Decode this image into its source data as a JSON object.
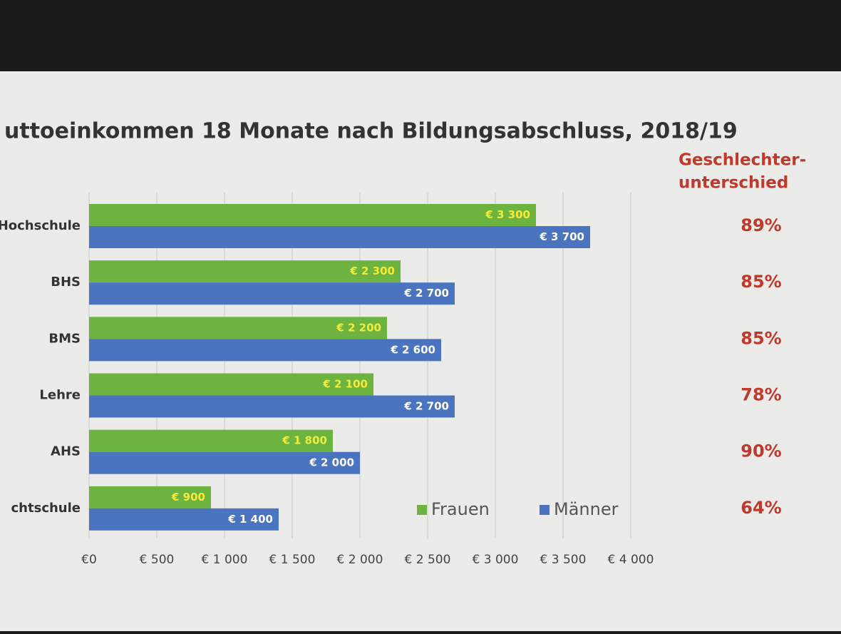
{
  "chart_data": {
    "type": "hbar",
    "title": "uttoeinkommen 18 Monate nach Bildungsabschluss, 2018/19",
    "categories": [
      "Hochschule",
      "BHS",
      "BMS",
      "Lehre",
      "AHS",
      "chtschule"
    ],
    "series": [
      {
        "name": "Frauen",
        "color": "#6db33f",
        "values": [
          3300,
          2300,
          2200,
          2100,
          1800,
          900
        ],
        "value_labels": [
          "€ 3 300",
          "€ 2 300",
          "€ 2 200",
          "€ 2 100",
          "€ 1 800",
          "€ 900"
        ]
      },
      {
        "name": "Männer",
        "color": "#4a74bf",
        "values": [
          3700,
          2700,
          2600,
          2700,
          2000,
          1400
        ],
        "value_labels": [
          "€ 3 700",
          "€ 2 700",
          "€ 2 600",
          "€ 2 700",
          "€ 2 000",
          "€ 1 400"
        ]
      }
    ],
    "xlim": [
      0,
      4000
    ],
    "xticks": [
      {
        "value": 0,
        "label": "€0"
      },
      {
        "value": 500,
        "label": "€ 500"
      },
      {
        "value": 1000,
        "label": "€ 1 000"
      },
      {
        "value": 1500,
        "label": "€ 1 500"
      },
      {
        "value": 2000,
        "label": "€ 2 000"
      },
      {
        "value": 2500,
        "label": "€ 2 500"
      },
      {
        "value": 3000,
        "label": "€ 3 000"
      },
      {
        "value": 3500,
        "label": "€ 3 500"
      },
      {
        "value": 4000,
        "label": "€ 4 000"
      }
    ],
    "grid": true,
    "legend": "lower right",
    "gap": {
      "title_lines": [
        "Geschlechter-",
        "unterschied"
      ],
      "color": "#c0392b",
      "values": [
        89,
        85,
        85,
        78,
        90,
        64
      ],
      "value_labels": [
        "89%",
        "85%",
        "85%",
        "78%",
        "90%",
        "64%"
      ]
    }
  }
}
